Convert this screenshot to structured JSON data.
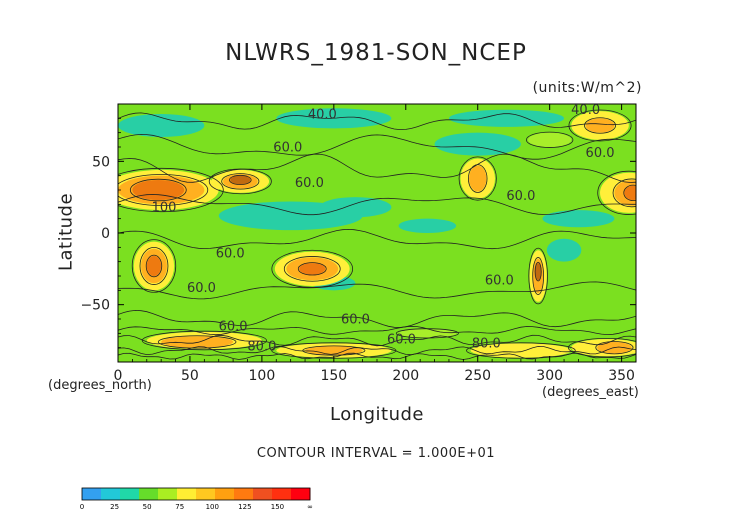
{
  "chart_data": {
    "type": "heatmap",
    "title": "NLWRS_1981-SON_NCEP",
    "units_label": "(units:W/m^2)",
    "xlabel": "Longitude",
    "ylabel": "Latitude",
    "x_unit": "(degrees_north)",
    "x_unit2": "(degrees_east)",
    "xlim": [
      0,
      360
    ],
    "ylim": [
      -90,
      90
    ],
    "x_ticks": [
      0,
      50,
      100,
      150,
      200,
      250,
      300,
      350
    ],
    "y_ticks": [
      50,
      0,
      -50
    ],
    "contour_interval_text": "CONTOUR INTERVAL = 1.000E+01",
    "contour_labels": [
      {
        "text": "40.0",
        "x": 142,
        "y": 80
      },
      {
        "text": "40.0",
        "x": 325,
        "y": 83
      },
      {
        "text": "60.0",
        "x": 118,
        "y": 57
      },
      {
        "text": "60.0",
        "x": 133,
        "y": 32
      },
      {
        "text": "60.0",
        "x": 335,
        "y": 53
      },
      {
        "text": "60.0",
        "x": 280,
        "y": 23
      },
      {
        "text": "100",
        "x": 32,
        "y": 15
      },
      {
        "text": "60.0",
        "x": 78,
        "y": -17
      },
      {
        "text": "60.0",
        "x": 58,
        "y": -41
      },
      {
        "text": "60.0",
        "x": 265,
        "y": -36
      },
      {
        "text": "60.0",
        "x": 165,
        "y": -63
      },
      {
        "text": "60.0",
        "x": 80,
        "y": -68
      },
      {
        "text": "60.0",
        "x": 197,
        "y": -77
      },
      {
        "text": "80.0",
        "x": 100,
        "y": -82
      },
      {
        "text": "80.0",
        "x": 256,
        "y": -80
      }
    ],
    "colorbar": {
      "levels": [
        "0",
        "25",
        "50",
        "75",
        "100",
        "125",
        "150",
        "∞"
      ],
      "colors": [
        "#33a0f0",
        "#22c8d8",
        "#20d8a8",
        "#66dd2a",
        "#aaee22",
        "#ffee33",
        "#ffc820",
        "#ffa010",
        "#ff7a10",
        "#f05020",
        "#ff3010",
        "#ff0010"
      ]
    },
    "colors": {
      "green": "#7be020",
      "teal": "#28cfa5",
      "light_green": "#a8ee2a",
      "yellow": "#ffef3a",
      "orange": "#ffb020",
      "dark_orange": "#ee7a10",
      "brown": "#c06a10"
    }
  }
}
